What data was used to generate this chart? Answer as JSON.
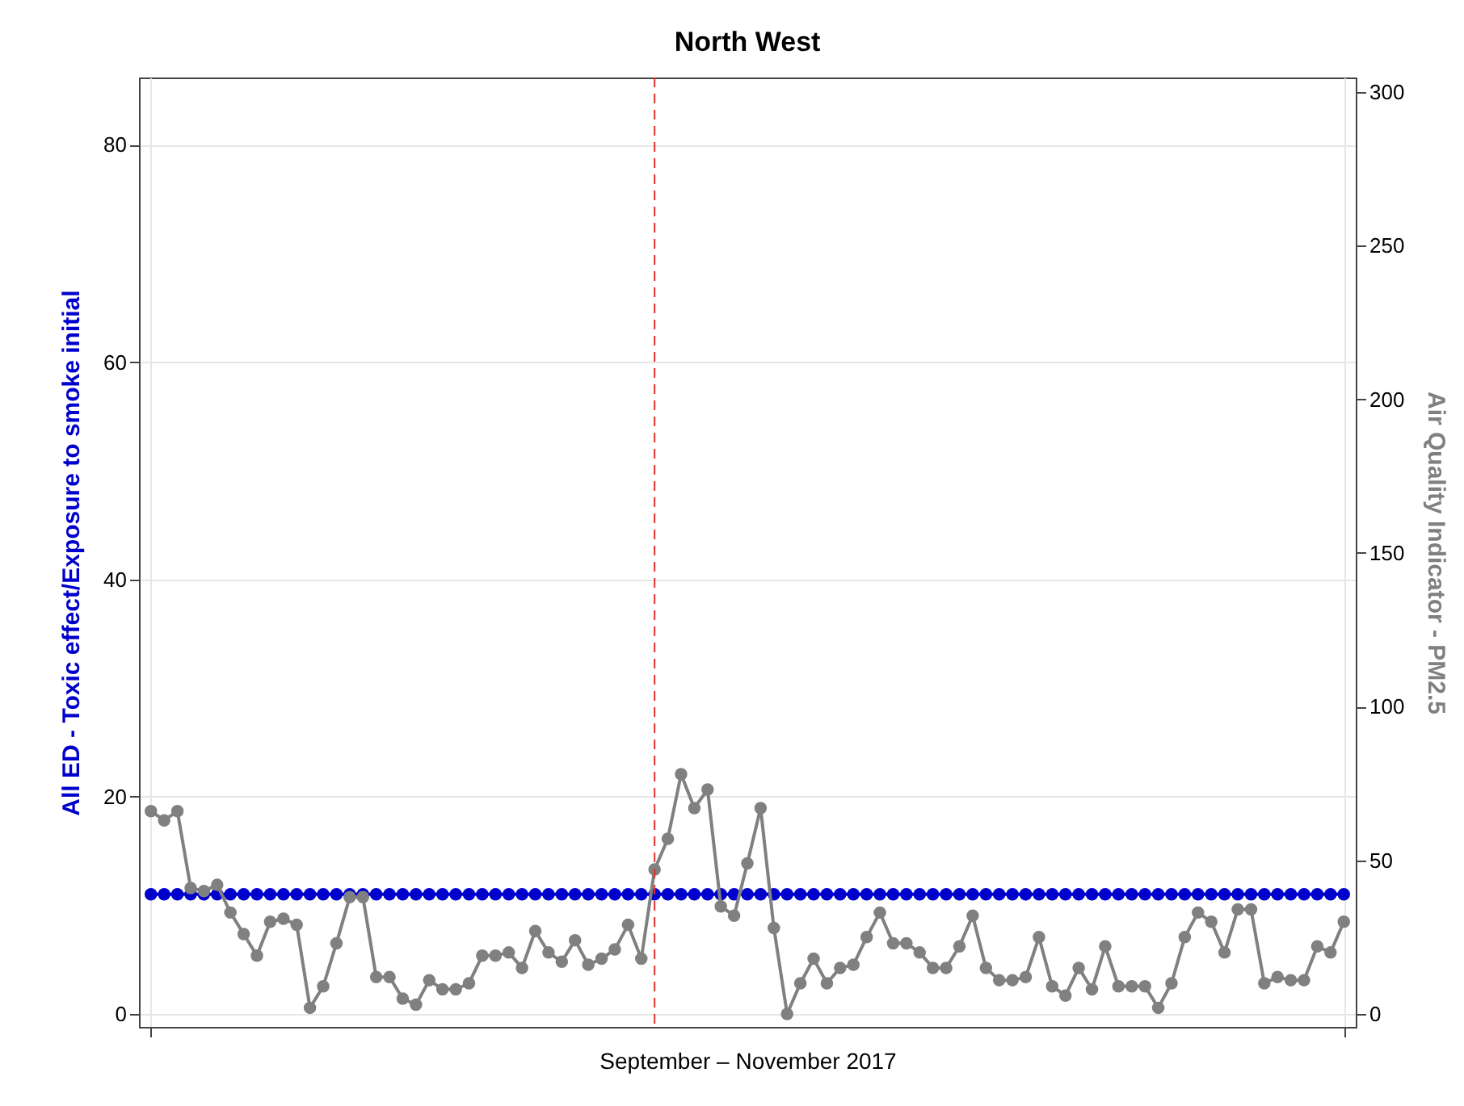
{
  "chart_data": {
    "type": "line",
    "title": "North West",
    "xlabel": "September – November 2017",
    "ylabel": "All ED - Toxic effect/Exposure to smoke initial",
    "y2label": "Air Quality Indicator - PM2.5",
    "categories": [
      null,
      null,
      null,
      null,
      null,
      null,
      null,
      null,
      null,
      null,
      null,
      null,
      null,
      null,
      null,
      null,
      null,
      null,
      null,
      null,
      null,
      null,
      null,
      null,
      null,
      null,
      null,
      null,
      null,
      null,
      null,
      null,
      null,
      null,
      null,
      null,
      null,
      null,
      null,
      null,
      null,
      null,
      null,
      null,
      null,
      null,
      null,
      null,
      null,
      null,
      null,
      null,
      null,
      null,
      null,
      null,
      null,
      null,
      null,
      null,
      null,
      null,
      null,
      null,
      null,
      null,
      null,
      null,
      null,
      null,
      null,
      null,
      null,
      null,
      null,
      null,
      null,
      null,
      null,
      null,
      null,
      null,
      null,
      null,
      null,
      null,
      null,
      null,
      null,
      null,
      null
    ],
    "ylim": [
      -1.2,
      86.2
    ],
    "yticks": [
      0,
      20,
      40,
      60,
      80
    ],
    "y2lim": [
      -4.2,
      304.7
    ],
    "y2ticks": [
      0,
      50,
      100,
      150,
      200,
      250,
      300
    ],
    "grid": true,
    "marker": "circle",
    "line_style": "solid",
    "series": [
      {
        "color": "#0000cc",
        "values": [
          11,
          11,
          11,
          11,
          11,
          11,
          11,
          11,
          11,
          11,
          11,
          11,
          11,
          11,
          11,
          11,
          11,
          11,
          11,
          11,
          11,
          11,
          11,
          11,
          11,
          11,
          11,
          11,
          11,
          11,
          11,
          11,
          11,
          11,
          11,
          11,
          11,
          11,
          11,
          11,
          11,
          11,
          11,
          11,
          11,
          11,
          11,
          11,
          11,
          11,
          11,
          11,
          11,
          11,
          11,
          11,
          11,
          11,
          11,
          11,
          11,
          11,
          11,
          11,
          11,
          11,
          11,
          11,
          11,
          11,
          11,
          11,
          11,
          11,
          11,
          11,
          11,
          11,
          11,
          11,
          11,
          11,
          11,
          11,
          11,
          11,
          11,
          11,
          11,
          11,
          11
        ]
      },
      {
        "color": "#808080",
        "axis": "y2",
        "values": [
          66,
          63,
          66,
          41,
          40,
          42,
          33,
          26,
          19,
          30,
          31,
          29,
          2,
          9,
          23,
          38,
          38,
          12,
          12,
          5,
          3,
          11,
          8,
          8,
          10,
          19,
          19,
          20,
          15,
          27,
          20,
          17,
          24,
          16,
          18,
          21,
          29,
          18,
          47,
          57,
          78,
          67,
          73,
          35,
          32,
          49,
          67,
          28,
          0,
          10,
          18,
          10,
          15,
          16,
          25,
          33,
          23,
          23,
          20,
          15,
          15,
          22,
          32,
          15,
          11,
          11,
          12,
          25,
          9,
          6,
          15,
          8,
          22,
          9,
          9,
          9,
          2,
          10,
          25,
          33,
          30,
          20,
          34,
          34,
          10,
          12,
          11,
          11,
          22,
          20,
          30
        ]
      }
    ]
  }
}
